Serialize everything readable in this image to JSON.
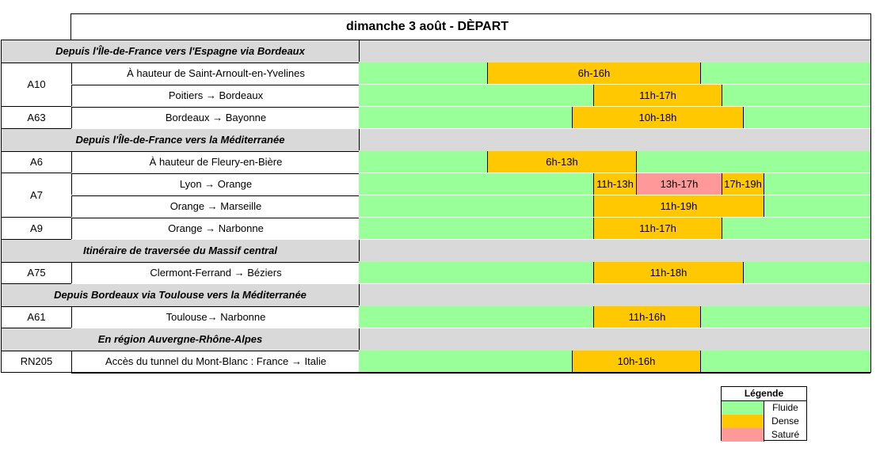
{
  "title": "dimanche 3 août  - DÈPART",
  "timeline": {
    "start_hour": 0,
    "end_hour": 24
  },
  "colors": {
    "fluide": "#99ff99",
    "dense": "#ffc800",
    "sature": "#ff9999"
  },
  "sections": [
    {
      "label": "Depuis l'Île-de-France vers l'Espagne via Bordeaux",
      "roads": [
        {
          "road": "A10",
          "routes": [
            {
              "label": "À hauteur de Saint-Arnoult-en-Yvelines",
              "segments": [
                {
                  "text": "6h-16h",
                  "start": 6,
                  "end": 16,
                  "level": "dense"
                }
              ]
            },
            {
              "label": "Poitiers → Bordeaux",
              "segments": [
                {
                  "text": "11h-17h",
                  "start": 11,
                  "end": 17,
                  "level": "dense"
                }
              ]
            }
          ]
        },
        {
          "road": "A63",
          "routes": [
            {
              "label": "Bordeaux → Bayonne",
              "segments": [
                {
                  "text": "10h-18h",
                  "start": 10,
                  "end": 18,
                  "level": "dense"
                }
              ]
            }
          ]
        }
      ]
    },
    {
      "label": "Depuis l'Île-de-France vers la Méditerranée",
      "roads": [
        {
          "road": "A6",
          "routes": [
            {
              "label": "À hauteur de Fleury-en-Bière",
              "segments": [
                {
                  "text": "6h-13h",
                  "start": 6,
                  "end": 13,
                  "level": "dense"
                }
              ]
            }
          ]
        },
        {
          "road": "A7",
          "routes": [
            {
              "label": "Lyon → Orange",
              "segments": [
                {
                  "text": "11h-13h",
                  "start": 11,
                  "end": 13,
                  "level": "dense"
                },
                {
                  "text": "13h-17h",
                  "start": 13,
                  "end": 17,
                  "level": "sature"
                },
                {
                  "text": "17h-19h",
                  "start": 17,
                  "end": 19,
                  "level": "dense"
                }
              ]
            },
            {
              "label": "Orange → Marseille",
              "segments": [
                {
                  "text": "11h-19h",
                  "start": 11,
                  "end": 19,
                  "level": "dense"
                }
              ]
            }
          ]
        },
        {
          "road": "A9",
          "routes": [
            {
              "label": "Orange → Narbonne",
              "segments": [
                {
                  "text": "11h-17h",
                  "start": 11,
                  "end": 17,
                  "level": "dense"
                }
              ]
            }
          ]
        }
      ]
    },
    {
      "label": "Itinéraire de traversée du Massif central",
      "roads": [
        {
          "road": "A75",
          "routes": [
            {
              "label": "Clermont-Ferrand → Béziers",
              "segments": [
                {
                  "text": "11h-18h",
                  "start": 11,
                  "end": 18,
                  "level": "dense"
                }
              ]
            }
          ]
        }
      ]
    },
    {
      "label": "Depuis Bordeaux via Toulouse vers la Méditerranée",
      "roads": [
        {
          "road": "A61",
          "routes": [
            {
              "label": "Toulouse→ Narbonne",
              "segments": [
                {
                  "text": "11h-16h",
                  "start": 11,
                  "end": 16,
                  "level": "dense"
                }
              ]
            }
          ]
        }
      ]
    },
    {
      "label": "En région Auvergne-Rhône-Alpes",
      "roads": [
        {
          "road": "RN205",
          "routes": [
            {
              "label": "Accès du tunnel du Mont-Blanc : France → Italie",
              "segments": [
                {
                  "text": "10h-16h",
                  "start": 10,
                  "end": 16,
                  "level": "dense"
                }
              ]
            }
          ]
        }
      ]
    }
  ],
  "legend": {
    "title": "Légende",
    "items": [
      {
        "label": "Fluide",
        "level": "fluide"
      },
      {
        "label": "Dense",
        "level": "dense"
      },
      {
        "label": "Saturé",
        "level": "sature"
      }
    ]
  }
}
